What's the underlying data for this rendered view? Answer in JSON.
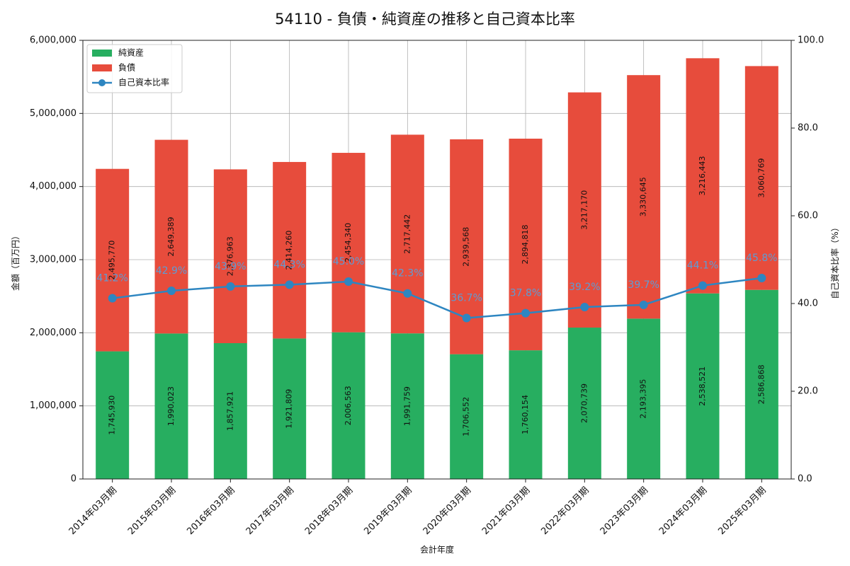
{
  "chart_data": {
    "type": "bar",
    "stacked": true,
    "title": "54110 - 負債・純資産の推移と自己資本比率",
    "xlabel": "会計年度",
    "ylabel": "金額（百万円）",
    "y2label": "自己資本比率（%）",
    "ylim": [
      0,
      6000000
    ],
    "y2lim": [
      0,
      100
    ],
    "yticks": [
      0,
      1000000,
      2000000,
      3000000,
      4000000,
      5000000,
      6000000
    ],
    "y2ticks": [
      0,
      20,
      40,
      60,
      80,
      100
    ],
    "grid": true,
    "legend_position": "top-left",
    "categories": [
      "2014年03月期",
      "2015年03月期",
      "2016年03月期",
      "2017年03月期",
      "2018年03月期",
      "2019年03月期",
      "2020年03月期",
      "2021年03月期",
      "2022年03月期",
      "2023年03月期",
      "2024年03月期",
      "2025年03月期"
    ],
    "series": [
      {
        "name": "純資産",
        "kind": "bar",
        "axis": "left",
        "color": "#27ae60",
        "values": [
          1745930,
          1990023,
          1857921,
          1921809,
          2006563,
          1991759,
          1706552,
          1760154,
          2070739,
          2193395,
          2538521,
          2586868
        ]
      },
      {
        "name": "負債",
        "kind": "bar",
        "axis": "left",
        "color": "#e74c3c",
        "values": [
          2495770,
          2649389,
          2376963,
          2414260,
          2454340,
          2717442,
          2939568,
          2894818,
          3217170,
          3330645,
          3216443,
          3060769
        ]
      },
      {
        "name": "自己資本比率",
        "kind": "line",
        "axis": "right",
        "color": "#2e86c1",
        "unit": "%",
        "values": [
          41.2,
          42.9,
          43.9,
          44.3,
          45.0,
          42.3,
          36.7,
          37.8,
          39.2,
          39.7,
          44.1,
          45.8
        ]
      }
    ]
  }
}
